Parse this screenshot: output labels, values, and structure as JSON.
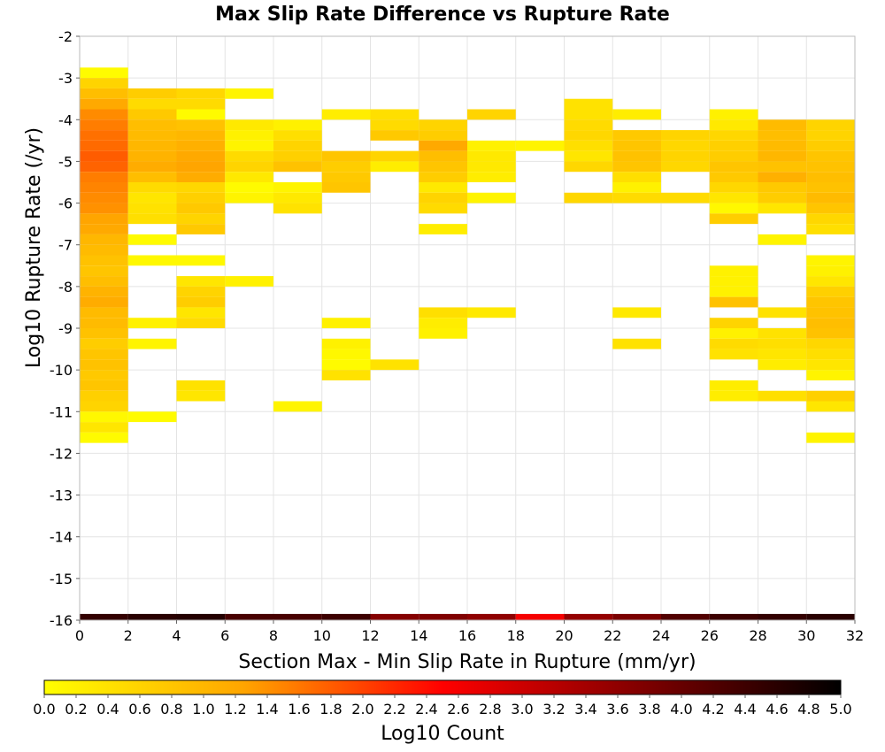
{
  "chart_data": {
    "type": "heatmap",
    "title": "Max Slip Rate Difference vs Rupture Rate",
    "xlabel": "Section Max - Min Slip Rate in Rupture (mm/yr)",
    "ylabel": "Log10 Rupture Rate (/yr)",
    "xlim": [
      0,
      32
    ],
    "ylim": [
      -16,
      -2
    ],
    "x_bin_width": 2,
    "y_bin_height": 0.25,
    "x_ticks": [
      "0",
      "2",
      "4",
      "6",
      "8",
      "10",
      "12",
      "14",
      "16",
      "18",
      "20",
      "22",
      "24",
      "26",
      "28",
      "30",
      "32"
    ],
    "y_ticks": [
      "-2",
      "-3",
      "-4",
      "-5",
      "-6",
      "-7",
      "-8",
      "-9",
      "-10",
      "-11",
      "-12",
      "-13",
      "-14",
      "-15",
      "-16"
    ],
    "grid": true,
    "colorbar": {
      "label": "Log10 Count",
      "range": [
        0,
        5
      ],
      "ticks": [
        "0.0",
        "0.2",
        "0.4",
        "0.6",
        "0.8",
        "1.0",
        "1.2",
        "1.4",
        "1.6",
        "1.8",
        "2.0",
        "2.2",
        "2.4",
        "2.6",
        "2.8",
        "3.0",
        "3.2",
        "3.4",
        "3.6",
        "3.8",
        "4.0",
        "4.2",
        "4.4",
        "4.6",
        "4.8",
        "5.0"
      ],
      "colors": [
        "#ffff00",
        "#ffa500",
        "#ff0000",
        "#800000",
        "#000000"
      ],
      "placement": "bottom"
    },
    "columns": [
      {
        "x": 1,
        "bins": [
          [
            -2.875,
            0.05
          ],
          [
            -3.125,
            0.6
          ],
          [
            -3.375,
            0.9
          ],
          [
            -3.625,
            1.2
          ],
          [
            -3.875,
            1.45
          ],
          [
            -4.125,
            1.55
          ],
          [
            -4.375,
            1.65
          ],
          [
            -4.625,
            1.7
          ],
          [
            -4.875,
            1.8
          ],
          [
            -5.125,
            1.75
          ],
          [
            -5.375,
            1.55
          ],
          [
            -5.625,
            1.5
          ],
          [
            -5.875,
            1.45
          ],
          [
            -6.125,
            1.4
          ],
          [
            -6.375,
            1.25
          ],
          [
            -6.625,
            1.2
          ],
          [
            -6.875,
            1.0
          ],
          [
            -7.125,
            0.95
          ],
          [
            -7.375,
            0.85
          ],
          [
            -7.625,
            0.8
          ],
          [
            -7.875,
            0.9
          ],
          [
            -8.125,
            1.05
          ],
          [
            -8.375,
            1.15
          ],
          [
            -8.625,
            0.95
          ],
          [
            -8.875,
            0.95
          ],
          [
            -9.125,
            0.85
          ],
          [
            -9.375,
            0.7
          ],
          [
            -9.625,
            0.8
          ],
          [
            -9.875,
            0.85
          ],
          [
            -10.125,
            0.75
          ],
          [
            -10.375,
            0.8
          ],
          [
            -10.625,
            0.65
          ],
          [
            -10.875,
            0.6
          ],
          [
            -11.125,
            0.1
          ],
          [
            -11.375,
            0.35
          ],
          [
            -11.625,
            0.05
          ],
          [
            -15.9,
            4.5
          ]
        ]
      },
      {
        "x": 3,
        "bins": [
          [
            -3.375,
            0.7
          ],
          [
            -3.625,
            0.5
          ],
          [
            -3.875,
            0.75
          ],
          [
            -4.125,
            0.9
          ],
          [
            -4.375,
            0.95
          ],
          [
            -4.625,
            1.0
          ],
          [
            -4.875,
            1.05
          ],
          [
            -5.125,
            1.15
          ],
          [
            -5.375,
            0.9
          ],
          [
            -5.625,
            0.5
          ],
          [
            -5.875,
            0.35
          ],
          [
            -6.125,
            0.4
          ],
          [
            -6.375,
            0.45
          ],
          [
            -6.875,
            0.05
          ],
          [
            -7.375,
            0.1
          ],
          [
            -8.875,
            0.2
          ],
          [
            -9.375,
            0.15
          ],
          [
            -11.125,
            0.05
          ],
          [
            -15.9,
            4.6
          ]
        ]
      },
      {
        "x": 5,
        "bins": [
          [
            -3.375,
            0.55
          ],
          [
            -3.625,
            0.5
          ],
          [
            -3.875,
            0.05
          ],
          [
            -4.125,
            0.85
          ],
          [
            -4.375,
            1.0
          ],
          [
            -4.625,
            1.1
          ],
          [
            -4.875,
            1.2
          ],
          [
            -5.125,
            1.25
          ],
          [
            -5.375,
            1.15
          ],
          [
            -5.625,
            0.55
          ],
          [
            -5.875,
            0.65
          ],
          [
            -6.125,
            0.75
          ],
          [
            -6.375,
            0.6
          ],
          [
            -6.625,
            0.75
          ],
          [
            -7.375,
            0.1
          ],
          [
            -7.875,
            0.35
          ],
          [
            -8.125,
            0.6
          ],
          [
            -8.375,
            0.7
          ],
          [
            -8.625,
            0.35
          ],
          [
            -8.875,
            0.5
          ],
          [
            -10.375,
            0.4
          ],
          [
            -10.625,
            0.35
          ],
          [
            -15.9,
            4.65
          ]
        ]
      },
      {
        "x": 7,
        "bins": [
          [
            -3.375,
            0.15
          ],
          [
            -4.125,
            0.3
          ],
          [
            -4.375,
            0.2
          ],
          [
            -4.625,
            0.15
          ],
          [
            -4.875,
            0.5
          ],
          [
            -5.125,
            0.6
          ],
          [
            -5.375,
            0.3
          ],
          [
            -5.625,
            0.05
          ],
          [
            -5.875,
            0.15
          ],
          [
            -7.875,
            0.2
          ],
          [
            -15.9,
            4.3
          ]
        ]
      },
      {
        "x": 9,
        "bins": [
          [
            -4.125,
            0.2
          ],
          [
            -4.375,
            0.45
          ],
          [
            -4.625,
            0.6
          ],
          [
            -4.875,
            0.65
          ],
          [
            -5.125,
            0.85
          ],
          [
            -5.625,
            0.15
          ],
          [
            -5.875,
            0.3
          ],
          [
            -6.125,
            0.4
          ],
          [
            -10.875,
            0.15
          ],
          [
            -15.9,
            4.3
          ]
        ]
      },
      {
        "x": 11,
        "bins": [
          [
            -3.875,
            0.25
          ],
          [
            -4.875,
            0.8
          ],
          [
            -5.125,
            0.7
          ],
          [
            -5.375,
            0.75
          ],
          [
            -5.625,
            0.8
          ],
          [
            -8.875,
            0.2
          ],
          [
            -9.375,
            0.2
          ],
          [
            -9.625,
            0.1
          ],
          [
            -9.875,
            0.05
          ],
          [
            -10.125,
            0.4
          ],
          [
            -15.9,
            4.4
          ]
        ]
      },
      {
        "x": 13,
        "bins": [
          [
            -3.875,
            0.45
          ],
          [
            -4.125,
            0.5
          ],
          [
            -4.375,
            0.75
          ],
          [
            -4.875,
            0.6
          ],
          [
            -5.125,
            0.25
          ],
          [
            -9.875,
            0.4
          ],
          [
            -15.9,
            3.7
          ]
        ]
      },
      {
        "x": 15,
        "bins": [
          [
            -4.125,
            0.6
          ],
          [
            -4.375,
            0.7
          ],
          [
            -4.625,
            1.2
          ],
          [
            -4.875,
            0.9
          ],
          [
            -5.125,
            0.8
          ],
          [
            -5.375,
            0.7
          ],
          [
            -5.625,
            0.3
          ],
          [
            -5.875,
            0.6
          ],
          [
            -6.125,
            0.5
          ],
          [
            -6.625,
            0.25
          ],
          [
            -8.625,
            0.45
          ],
          [
            -8.875,
            0.25
          ],
          [
            -9.125,
            0.2
          ],
          [
            -15.9,
            3.75
          ]
        ]
      },
      {
        "x": 17,
        "bins": [
          [
            -3.875,
            0.6
          ],
          [
            -4.625,
            0.2
          ],
          [
            -4.875,
            0.3
          ],
          [
            -5.125,
            0.3
          ],
          [
            -5.375,
            0.25
          ],
          [
            -5.875,
            0.15
          ],
          [
            -8.625,
            0.3
          ],
          [
            -15.9,
            3.6
          ]
        ]
      },
      {
        "x": 19,
        "bins": [
          [
            -4.625,
            0.15
          ],
          [
            -15.9,
            2.6
          ]
        ]
      },
      {
        "x": 21,
        "bins": [
          [
            -3.625,
            0.4
          ],
          [
            -3.875,
            0.4
          ],
          [
            -4.125,
            0.5
          ],
          [
            -4.375,
            0.55
          ],
          [
            -4.625,
            0.45
          ],
          [
            -4.875,
            0.35
          ],
          [
            -5.125,
            0.55
          ],
          [
            -5.875,
            0.55
          ],
          [
            -15.9,
            3.55
          ]
        ]
      },
      {
        "x": 23,
        "bins": [
          [
            -3.875,
            0.25
          ],
          [
            -4.375,
            0.75
          ],
          [
            -4.625,
            0.8
          ],
          [
            -4.875,
            0.85
          ],
          [
            -5.125,
            0.8
          ],
          [
            -5.375,
            0.45
          ],
          [
            -5.625,
            0.2
          ],
          [
            -5.875,
            0.5
          ],
          [
            -8.625,
            0.3
          ],
          [
            -9.375,
            0.4
          ],
          [
            -15.9,
            3.8
          ]
        ]
      },
      {
        "x": 25,
        "bins": [
          [
            -4.375,
            0.6
          ],
          [
            -4.625,
            0.55
          ],
          [
            -4.875,
            0.6
          ],
          [
            -5.125,
            0.55
          ],
          [
            -5.875,
            0.5
          ],
          [
            -15.9,
            4.2
          ]
        ]
      },
      {
        "x": 27,
        "bins": [
          [
            -3.875,
            0.2
          ],
          [
            -4.125,
            0.3
          ],
          [
            -4.375,
            0.55
          ],
          [
            -4.625,
            0.65
          ],
          [
            -4.875,
            0.7
          ],
          [
            -5.125,
            0.8
          ],
          [
            -5.375,
            0.75
          ],
          [
            -5.625,
            0.55
          ],
          [
            -5.875,
            0.35
          ],
          [
            -6.125,
            0.1
          ],
          [
            -6.375,
            0.7
          ],
          [
            -7.625,
            0.2
          ],
          [
            -7.875,
            0.2
          ],
          [
            -8.125,
            0.2
          ],
          [
            -8.375,
            0.85
          ],
          [
            -8.875,
            0.6
          ],
          [
            -9.125,
            0.2
          ],
          [
            -9.375,
            0.5
          ],
          [
            -9.625,
            0.4
          ],
          [
            -10.375,
            0.25
          ],
          [
            -10.625,
            0.25
          ],
          [
            -15.9,
            4.4
          ]
        ]
      },
      {
        "x": 29,
        "bins": [
          [
            -4.125,
            0.95
          ],
          [
            -4.375,
            0.9
          ],
          [
            -4.625,
            0.95
          ],
          [
            -4.875,
            1.0
          ],
          [
            -5.125,
            0.85
          ],
          [
            -5.375,
            1.1
          ],
          [
            -5.625,
            0.75
          ],
          [
            -5.875,
            0.7
          ],
          [
            -6.125,
            0.35
          ],
          [
            -6.875,
            0.15
          ],
          [
            -8.625,
            0.4
          ],
          [
            -9.125,
            0.4
          ],
          [
            -9.375,
            0.45
          ],
          [
            -9.625,
            0.35
          ],
          [
            -9.875,
            0.25
          ],
          [
            -10.625,
            0.45
          ],
          [
            -15.9,
            4.5
          ]
        ]
      },
      {
        "x": 31,
        "bins": [
          [
            -4.125,
            0.6
          ],
          [
            -4.375,
            0.6
          ],
          [
            -4.625,
            0.7
          ],
          [
            -4.875,
            0.8
          ],
          [
            -5.125,
            0.85
          ],
          [
            -5.375,
            0.9
          ],
          [
            -5.625,
            0.85
          ],
          [
            -5.875,
            0.95
          ],
          [
            -6.125,
            0.8
          ],
          [
            -6.375,
            0.55
          ],
          [
            -6.625,
            0.45
          ],
          [
            -7.375,
            0.15
          ],
          [
            -7.625,
            0.2
          ],
          [
            -7.875,
            0.35
          ],
          [
            -8.125,
            0.65
          ],
          [
            -8.375,
            0.8
          ],
          [
            -8.625,
            0.85
          ],
          [
            -8.875,
            0.9
          ],
          [
            -9.125,
            0.85
          ],
          [
            -9.375,
            0.55
          ],
          [
            -9.625,
            0.45
          ],
          [
            -9.875,
            0.35
          ],
          [
            -10.125,
            0.15
          ],
          [
            -10.625,
            0.65
          ],
          [
            -10.875,
            0.35
          ],
          [
            -11.625,
            0.15
          ],
          [
            -15.9,
            4.6
          ]
        ]
      }
    ]
  }
}
